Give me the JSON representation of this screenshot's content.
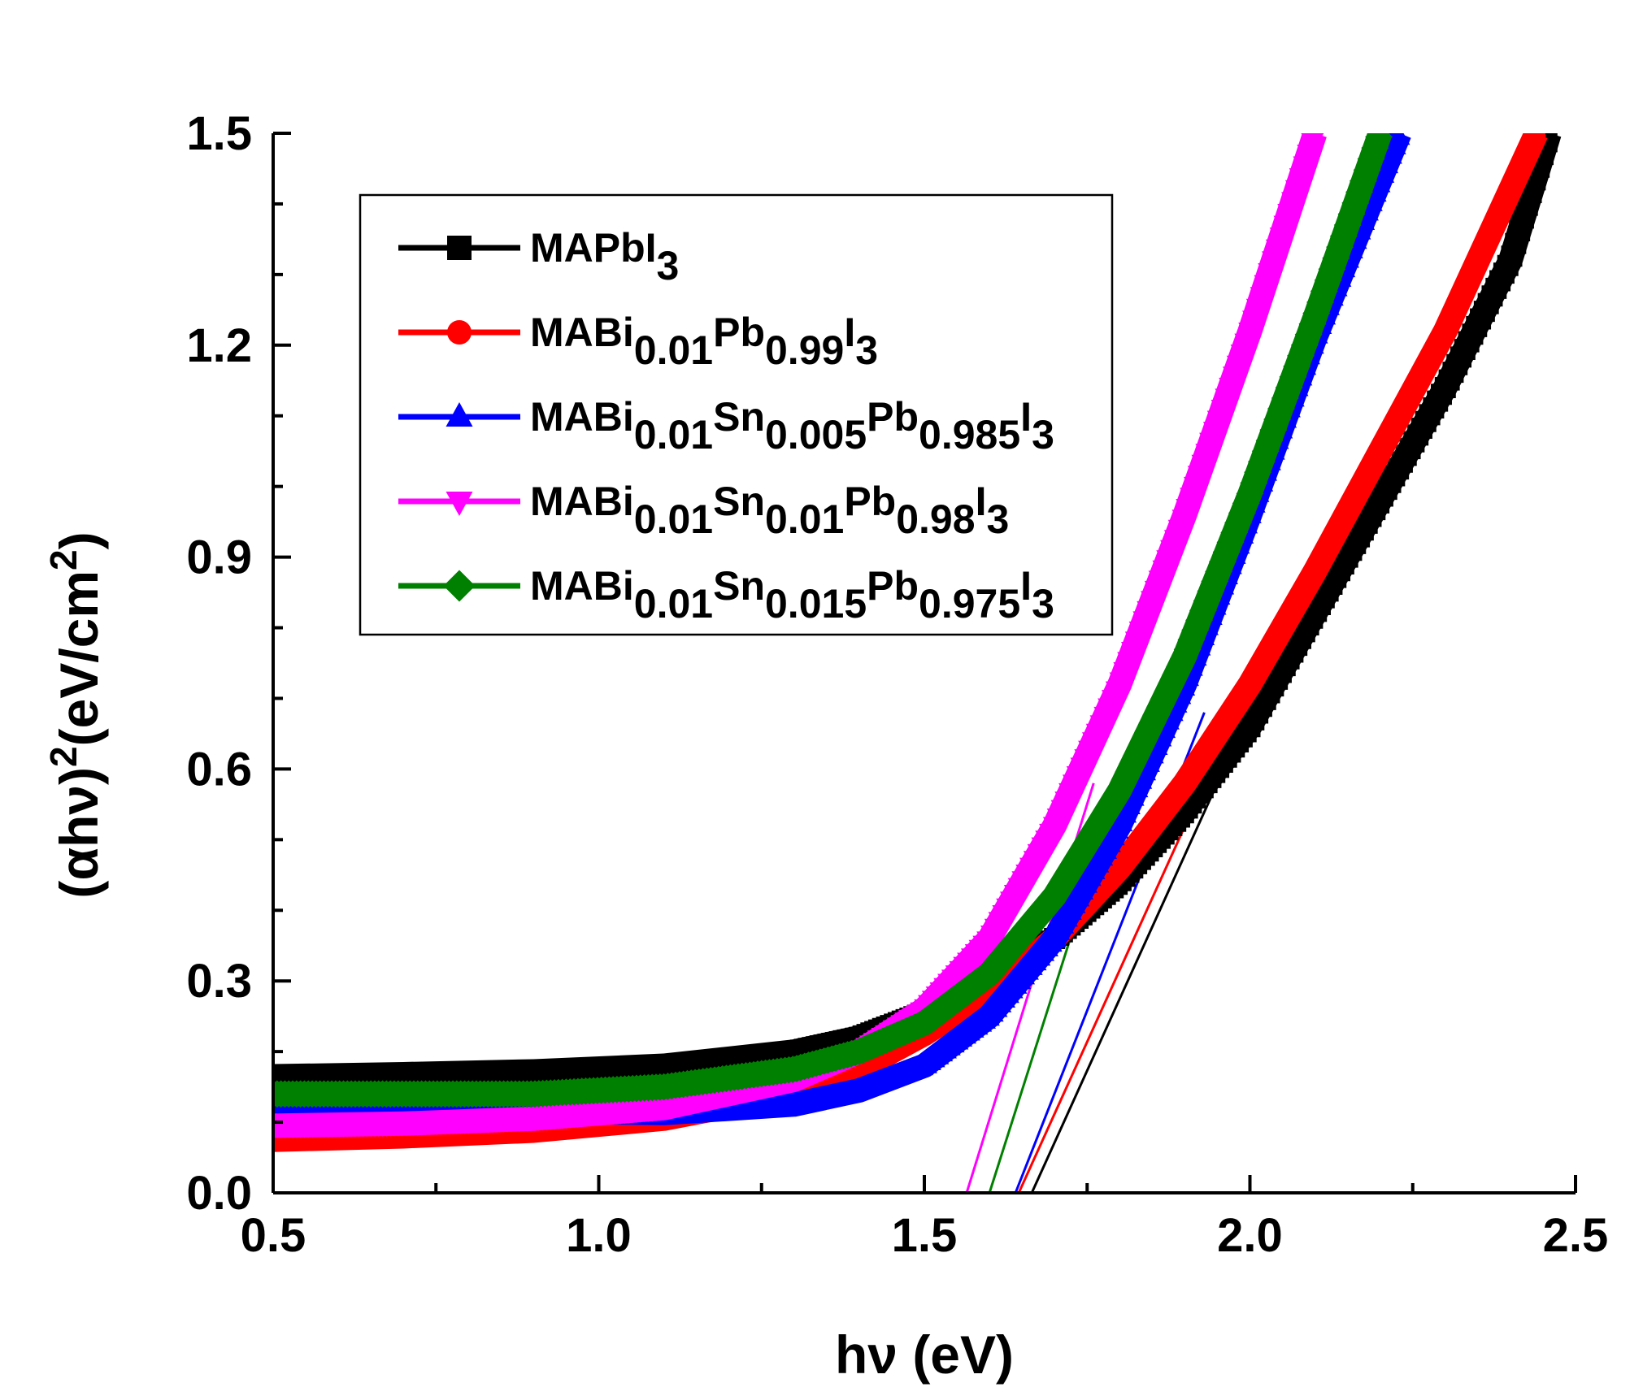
{
  "chart_data": {
    "type": "line",
    "title": "",
    "xlabel": "hν (eV)",
    "ylabel_parts": {
      "prefix": "(αhν)",
      "sup": "2",
      "unit_main": "(eV/cm",
      "unit_sup": "2",
      "unit_close": ")"
    },
    "xlim": [
      0.5,
      2.5
    ],
    "ylim": [
      0.0,
      1.5
    ],
    "xticks": [
      "0.5",
      "1.0",
      "1.5",
      "2.0",
      "2.5"
    ],
    "yticks": [
      "0.0",
      "0.3",
      "0.6",
      "0.9",
      "1.2",
      "1.5"
    ],
    "grid": false,
    "legend_position": "upper-left",
    "series": [
      {
        "name": "MAPbI3",
        "legend_parts": [
          {
            "t": "MAPbI"
          },
          {
            "t": "3",
            "sub": true
          }
        ],
        "color": "#000000",
        "marker": "square",
        "x": [
          0.5,
          0.7,
          0.9,
          1.1,
          1.3,
          1.4,
          1.5,
          1.6,
          1.7,
          1.8,
          1.9,
          2.0,
          2.1,
          2.2,
          2.3,
          2.4,
          2.46
        ],
        "y": [
          0.165,
          0.168,
          0.172,
          0.18,
          0.2,
          0.22,
          0.255,
          0.3,
          0.36,
          0.44,
          0.54,
          0.66,
          0.82,
          0.98,
          1.14,
          1.32,
          1.5
        ],
        "fit_line": {
          "x": [
            1.665,
            1.95
          ],
          "y": [
            0.0,
            0.58
          ]
        }
      },
      {
        "name": "MABi0.01Pb0.99I3",
        "legend_parts": [
          {
            "t": "MABi"
          },
          {
            "t": "0.01",
            "sub": true
          },
          {
            "t": "Pb"
          },
          {
            "t": "0.99",
            "sub": true
          },
          {
            "t": "I"
          },
          {
            "t": "3",
            "sub": true
          }
        ],
        "color": "#ff0000",
        "marker": "circle",
        "x": [
          0.5,
          0.7,
          0.9,
          1.1,
          1.3,
          1.4,
          1.5,
          1.6,
          1.7,
          1.8,
          1.9,
          2.0,
          2.1,
          2.2,
          2.3,
          2.44
        ],
        "y": [
          0.075,
          0.08,
          0.088,
          0.105,
          0.14,
          0.175,
          0.225,
          0.285,
          0.36,
          0.46,
          0.58,
          0.72,
          0.88,
          1.05,
          1.22,
          1.5
        ],
        "fit_line": {
          "x": [
            1.645,
            1.93
          ],
          "y": [
            0.0,
            0.58
          ]
        }
      },
      {
        "name": "MABi0.01Sn0.005Pb0.985I3",
        "legend_parts": [
          {
            "t": "MABi"
          },
          {
            "t": "0.01",
            "sub": true
          },
          {
            "t": "Sn"
          },
          {
            "t": "0.005",
            "sub": true
          },
          {
            "t": "Pb"
          },
          {
            "t": "0.985",
            "sub": true
          },
          {
            "t": "I"
          },
          {
            "t": "3",
            "sub": true
          }
        ],
        "color": "#0000ff",
        "marker": "triangle-up",
        "x": [
          0.5,
          0.7,
          0.9,
          1.1,
          1.3,
          1.4,
          1.5,
          1.6,
          1.7,
          1.8,
          1.9,
          2.0,
          2.1,
          2.23
        ],
        "y": [
          0.12,
          0.118,
          0.115,
          0.113,
          0.125,
          0.145,
          0.18,
          0.25,
          0.36,
          0.52,
          0.72,
          0.96,
          1.21,
          1.5
        ],
        "fit_line": {
          "x": [
            1.64,
            1.93
          ],
          "y": [
            0.0,
            0.68
          ]
        }
      },
      {
        "name": "MABi0.01Sn0.01Pb0.98I3",
        "legend_parts": [
          {
            "t": "MABi"
          },
          {
            "t": "0.01",
            "sub": true
          },
          {
            "t": "Sn"
          },
          {
            "t": "0.01",
            "sub": true
          },
          {
            "t": "Pb"
          },
          {
            "t": "0.98",
            "sub": true
          },
          {
            "t": "I"
          },
          {
            "t": "3",
            "sub": true
          }
        ],
        "color": "#ff00ff",
        "marker": "triangle-down",
        "x": [
          0.5,
          0.7,
          0.9,
          1.1,
          1.3,
          1.4,
          1.5,
          1.6,
          1.7,
          1.8,
          1.9,
          2.0,
          2.1
        ],
        "y": [
          0.095,
          0.098,
          0.105,
          0.12,
          0.16,
          0.2,
          0.26,
          0.36,
          0.52,
          0.72,
          0.96,
          1.22,
          1.5
        ],
        "fit_line": {
          "x": [
            1.565,
            1.76
          ],
          "y": [
            0.0,
            0.58
          ]
        }
      },
      {
        "name": "MABi0.01Sn0.015Pb0.975I3",
        "legend_parts": [
          {
            "t": "MABi"
          },
          {
            "t": "0.01",
            "sub": true
          },
          {
            "t": "Sn"
          },
          {
            "t": "0.015",
            "sub": true
          },
          {
            "t": "Pb"
          },
          {
            "t": "0.975",
            "sub": true
          },
          {
            "t": "I"
          },
          {
            "t": "3",
            "sub": true
          }
        ],
        "color": "#008000",
        "marker": "diamond",
        "x": [
          0.5,
          0.7,
          0.9,
          1.1,
          1.3,
          1.4,
          1.5,
          1.6,
          1.7,
          1.8,
          1.9,
          2.0,
          2.1,
          2.2
        ],
        "y": [
          0.14,
          0.14,
          0.14,
          0.15,
          0.175,
          0.2,
          0.24,
          0.31,
          0.42,
          0.57,
          0.76,
          0.99,
          1.24,
          1.5
        ],
        "fit_line": {
          "x": [
            1.6,
            1.8
          ],
          "y": [
            0.0,
            0.58
          ]
        }
      }
    ]
  }
}
